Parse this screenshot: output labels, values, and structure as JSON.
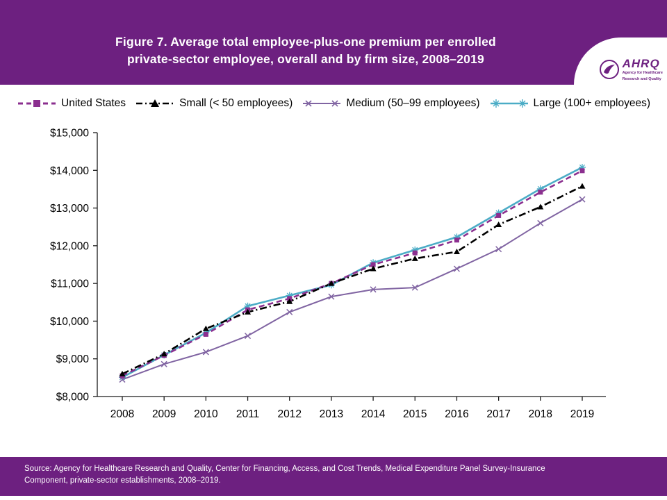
{
  "theme": {
    "banner_color": "#6d2080",
    "axis_color": "#1a1a1a",
    "background_color": "#ffffff"
  },
  "header": {
    "title_line1": "Figure 7. Average total employee-plus-one premium per enrolled",
    "title_line2": "private-sector employee, overall and by firm size, 2008–2019"
  },
  "logo": {
    "ahrq_text": "AHRQ",
    "tagline_line1": "Agency for Healthcare",
    "tagline_line2": "Research and Quality"
  },
  "chart_data": {
    "type": "line",
    "title": "Figure 7. Average total employee-plus-one premium per enrolled private-sector employee, overall and by firm size, 2008–2019",
    "x": [
      2008,
      2009,
      2010,
      2011,
      2012,
      2013,
      2014,
      2015,
      2016,
      2017,
      2018,
      2019
    ],
    "xtick_labels": [
      "2008",
      "2009",
      "2010",
      "2011",
      "2012",
      "2013",
      "2014",
      "2015",
      "2016",
      "2017",
      "2018",
      "2019"
    ],
    "ylim": [
      8000,
      15000
    ],
    "ytick_step": 1000,
    "ytick_labels": [
      "$8,000",
      "$9,000",
      "$10,000",
      "$11,000",
      "$12,000",
      "$13,000",
      "$14,000",
      "$15,000"
    ],
    "grid": false,
    "legend_position": "top",
    "series": [
      {
        "name": "United States",
        "color": "#8b2f8f",
        "dash": "8 5",
        "marker": "square",
        "values": [
          8550,
          9090,
          9650,
          10300,
          10600,
          11000,
          11500,
          11810,
          12150,
          12800,
          13420,
          13990
        ]
      },
      {
        "name": "Small (< 50 employees)",
        "color": "#000000",
        "dash": "10 4 2 4",
        "marker": "triangle",
        "values": [
          8600,
          9130,
          9800,
          10240,
          10520,
          11000,
          11390,
          11660,
          11840,
          12560,
          13030,
          13580
        ]
      },
      {
        "name": "Medium (50–99 employees)",
        "color": "#8064a2",
        "dash": "",
        "marker": "x",
        "values": [
          8450,
          8860,
          9180,
          9610,
          10240,
          10650,
          10840,
          10890,
          11390,
          11910,
          12600,
          13230
        ]
      },
      {
        "name": "Large (100+ employees)",
        "color": "#4bacc6",
        "dash": "",
        "marker": "asterisk",
        "values": [
          8510,
          9100,
          9690,
          10400,
          10680,
          10960,
          11550,
          11890,
          12230,
          12870,
          13510,
          14080
        ]
      }
    ]
  },
  "footer": {
    "source_text": "Source: Agency for Healthcare Research and Quality, Center for Financing, Access, and Cost Trends, Medical Expenditure Panel Survey-Insurance Component, private-sector establishments, 2008–2019."
  }
}
